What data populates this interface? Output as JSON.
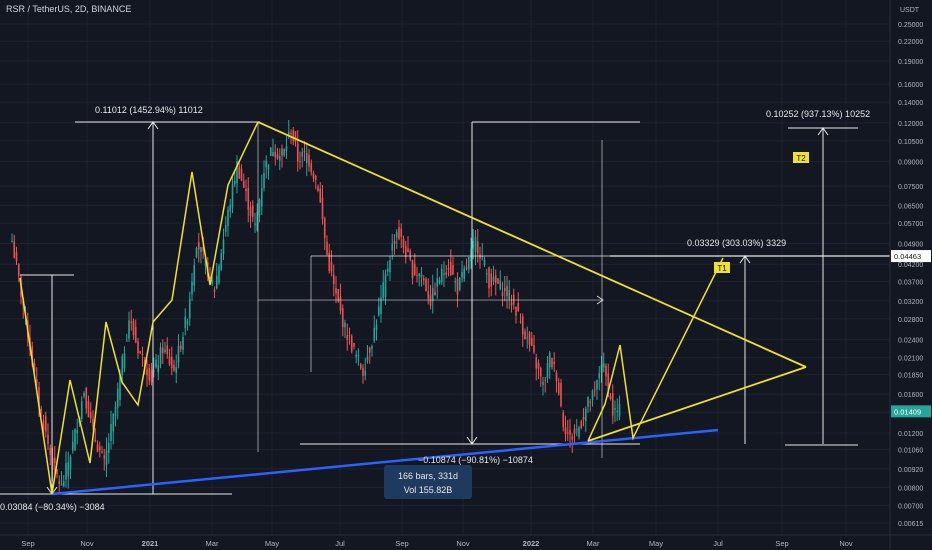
{
  "header": {
    "symbol": "RSR / TetherUS, 2D, BINANCE",
    "currency": "USDT"
  },
  "colors": {
    "background": "#131722",
    "up": "#26a69a",
    "down": "#ef5350",
    "yellow": "#f0e030",
    "blue": "#2962ff",
    "white": "#e8e8e8",
    "grid": "#1e222d",
    "axis_text": "#b2b5be",
    "last_price": "#26a69a"
  },
  "chart_data": {
    "type": "candlestick",
    "y_scale": "log",
    "ylim": [
      0.0056,
      0.29
    ],
    "x_tick_labels": [
      "Sep",
      "Nov",
      "2021",
      "Mar",
      "May",
      "Jul",
      "Sep",
      "Nov",
      "2022",
      "Mar",
      "May",
      "Jul",
      "Sep",
      "Nov"
    ],
    "y_tick_labels": [
      "0.25000",
      "0.22000",
      "0.19000",
      "0.16000",
      "0.14000",
      "0.12000",
      "0.10500",
      "0.09000",
      "0.07500",
      "0.06500",
      "0.05700",
      "0.04900",
      "0.04200",
      "0.03700",
      "0.03200",
      "0.02800",
      "0.02400",
      "0.02100",
      "0.01850",
      "0.01600",
      "0.01400",
      "0.01200",
      "0.01060",
      "0.00920",
      "0.00800",
      "0.00700",
      "0.00615"
    ],
    "price_labels": [
      {
        "text": "0.04463",
        "style": "white"
      },
      {
        "text": "0.01409",
        "style": "green"
      }
    ],
    "annotations": {
      "top_measure": "0.11012 (1452.94%) 11012",
      "left_bottom_measure": "0.03084 (−80.34%) −3084",
      "drop_measure": "−0.10874 (−90.81%) −10874",
      "bars_label": "166 bars, 331d",
      "vol_label": "Vol 155.82B",
      "t1_measure": "0.03329 (303.03%) 3329",
      "t2_measure": "0.10252 (937.13%) 10252",
      "t1_label": "T1",
      "t2_label": "T2"
    },
    "close_path": [
      [
        0,
        0.05
      ],
      [
        6,
        0.028
      ],
      [
        12,
        0.015
      ],
      [
        18,
        0.0095
      ],
      [
        22,
        0.008
      ],
      [
        27,
        0.011
      ],
      [
        32,
        0.0165
      ],
      [
        36,
        0.012
      ],
      [
        41,
        0.0095
      ],
      [
        46,
        0.0145
      ],
      [
        52,
        0.028
      ],
      [
        56,
        0.0225
      ],
      [
        62,
        0.018
      ],
      [
        67,
        0.0225
      ],
      [
        72,
        0.019
      ],
      [
        78,
        0.029
      ],
      [
        82,
        0.05
      ],
      [
        86,
        0.042
      ],
      [
        90,
        0.035
      ],
      [
        95,
        0.056
      ],
      [
        100,
        0.088
      ],
      [
        104,
        0.07
      ],
      [
        108,
        0.055
      ],
      [
        112,
        0.085
      ],
      [
        116,
        0.1
      ],
      [
        120,
        0.092
      ],
      [
        124,
        0.115
      ],
      [
        127,
        0.092
      ],
      [
        131,
        0.095
      ],
      [
        136,
        0.075
      ],
      [
        140,
        0.045
      ],
      [
        144,
        0.033
      ],
      [
        148,
        0.026
      ],
      [
        152,
        0.022
      ],
      [
        156,
        0.019
      ],
      [
        160,
        0.024
      ],
      [
        164,
        0.032
      ],
      [
        168,
        0.045
      ],
      [
        171,
        0.054
      ],
      [
        174,
        0.048
      ],
      [
        178,
        0.04
      ],
      [
        182,
        0.039
      ],
      [
        186,
        0.032
      ],
      [
        190,
        0.038
      ],
      [
        194,
        0.042
      ],
      [
        198,
        0.035
      ],
      [
        202,
        0.041
      ],
      [
        206,
        0.05
      ],
      [
        209,
        0.044
      ],
      [
        212,
        0.037
      ],
      [
        216,
        0.036
      ],
      [
        220,
        0.034
      ],
      [
        224,
        0.03
      ],
      [
        228,
        0.025
      ],
      [
        232,
        0.021
      ],
      [
        236,
        0.017
      ],
      [
        239,
        0.021
      ],
      [
        242,
        0.0185
      ],
      [
        245,
        0.013
      ],
      [
        248,
        0.0115
      ],
      [
        252,
        0.0125
      ],
      [
        256,
        0.015
      ],
      [
        259,
        0.016
      ],
      [
        262,
        0.0205
      ],
      [
        264,
        0.018
      ],
      [
        267,
        0.014
      ],
      [
        270,
        0.0141
      ]
    ]
  }
}
